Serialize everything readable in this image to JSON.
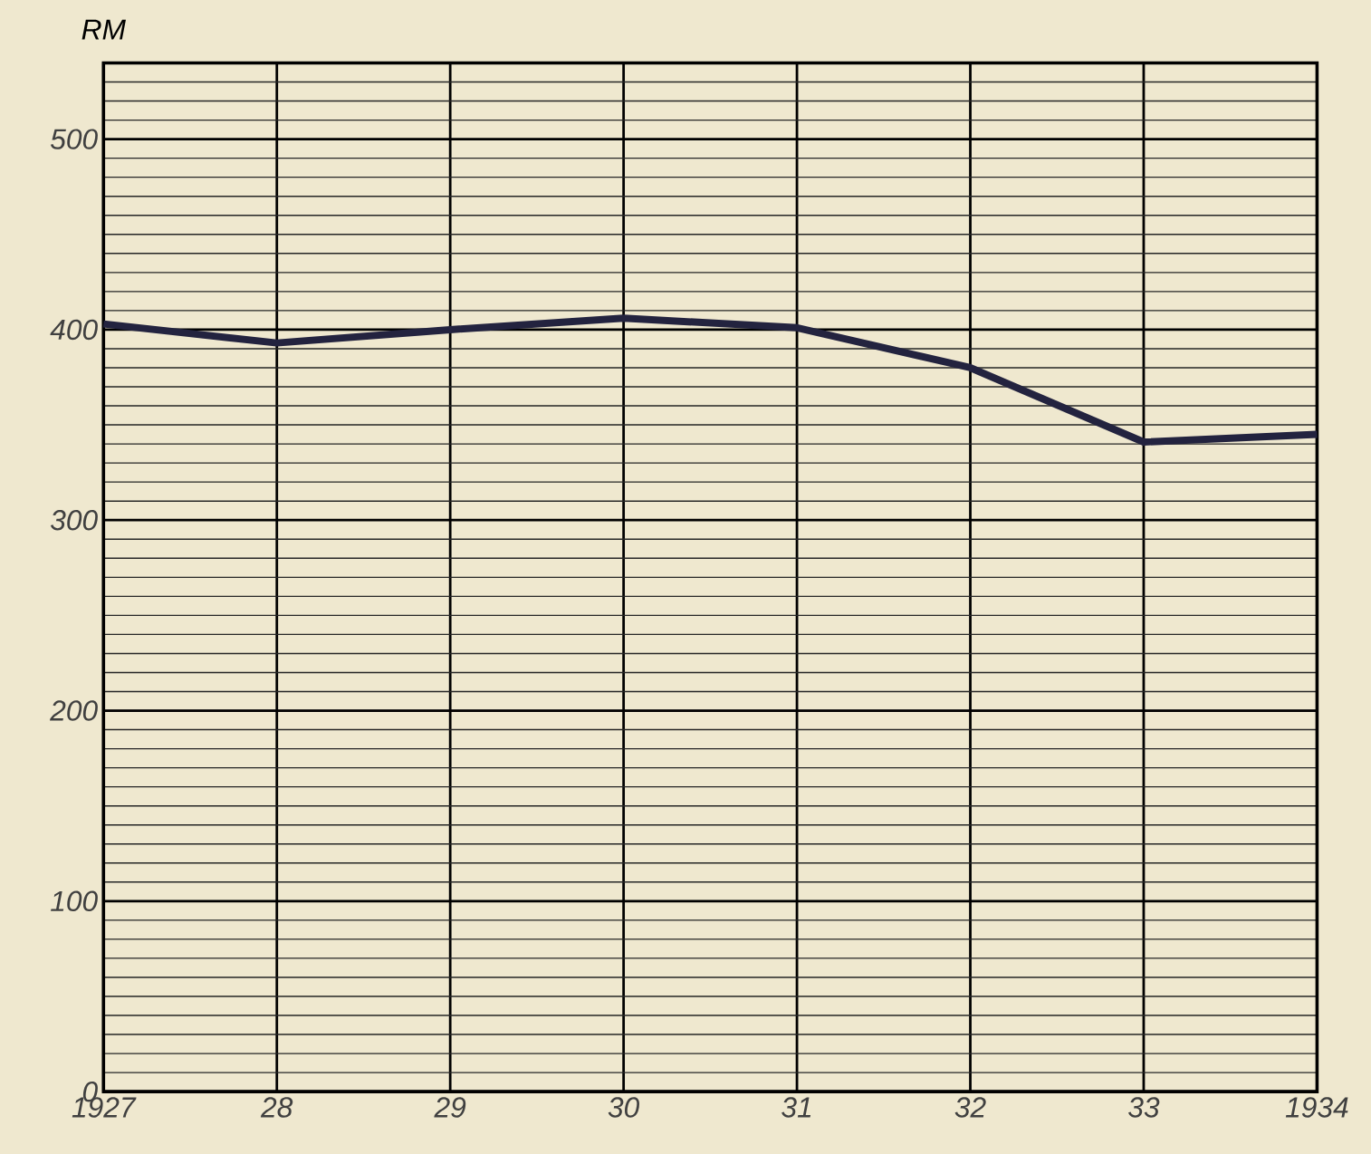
{
  "chart_data": {
    "type": "line",
    "ylabel": "RM",
    "categories": [
      "1927",
      "28",
      "29",
      "30",
      "31",
      "32",
      "33",
      "1934"
    ],
    "series": [
      {
        "color": "#23233f",
        "values": [
          403,
          393,
          400,
          406,
          401,
          380,
          341,
          345
        ]
      }
    ],
    "ylim": [
      0,
      540
    ],
    "yticks": [
      0,
      100,
      200,
      300,
      400,
      500
    ],
    "grid": true,
    "marker": "none",
    "line_style": "solid"
  }
}
